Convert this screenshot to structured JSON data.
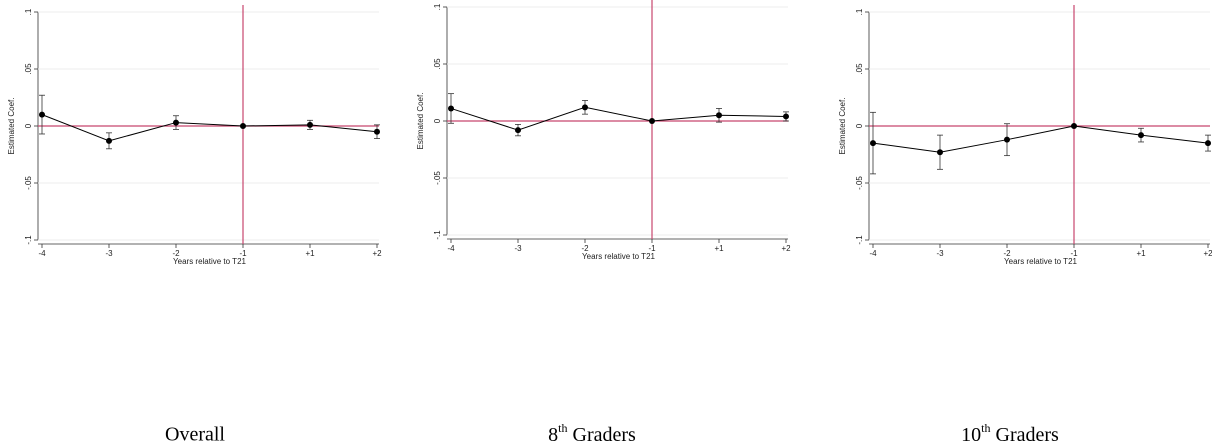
{
  "chart_data": [
    {
      "type": "line",
      "caption": "Overall",
      "ylabel": "Estimated Coef.",
      "xlabel": "Years relative to T21",
      "categories": [
        "-4",
        "-3",
        "-2",
        "-1",
        "+1",
        "+2"
      ],
      "values": [
        0.01,
        -0.013,
        0.003,
        0,
        0.001,
        -0.005
      ],
      "errors": [
        0.017,
        0.007,
        0.006,
        0,
        0.004,
        0.006
      ],
      "color": "#000000",
      "ref_color": "#c8466e",
      "ref_y": 0,
      "ref_x": "-1",
      "grid": true,
      "ylim": [
        -0.1,
        0.1
      ],
      "yticks": [
        {
          "value": -0.1,
          "label": "-.1"
        },
        {
          "value": -0.05,
          "label": "-.05"
        },
        0,
        {
          "value": 0.05,
          "label": ".05"
        },
        {
          "value": 0.1,
          "label": ".1"
        }
      ]
    },
    {
      "type": "line",
      "caption": [
        "8",
        "th",
        " Graders"
      ],
      "ylabel": "Estimated Coef.",
      "xlabel": "Years relative to T21",
      "categories": [
        "-4",
        "-3",
        "-2",
        "-1",
        "+1",
        "+2"
      ],
      "values": [
        0.011,
        -0.008,
        0.012,
        0,
        0.005,
        0.004
      ],
      "errors": [
        0.013,
        0.005,
        0.006,
        0,
        0.006,
        0.004
      ],
      "color": "#000000",
      "ref_color": "#c8466e",
      "ref_y": 0,
      "ref_x": "-1",
      "grid": true,
      "ylim": [
        -0.1,
        0.1
      ],
      "yticks": [
        {
          "value": -0.1,
          "label": "-.1"
        },
        {
          "value": -0.05,
          "label": "-.05"
        },
        0,
        {
          "value": 0.05,
          "label": ".05"
        },
        {
          "value": 0.1,
          "label": ".1"
        }
      ]
    },
    {
      "type": "line",
      "caption": [
        "10",
        "th",
        " Graders"
      ],
      "ylabel": "Estimated Coef.",
      "xlabel": "Years relative to T21",
      "categories": [
        "-4",
        "-3",
        "-2",
        "-1",
        "+1",
        "+2"
      ],
      "values": [
        -0.015,
        -0.023,
        -0.012,
        0,
        -0.008,
        -0.015
      ],
      "errors": [
        0.027,
        0.015,
        0.014,
        0,
        0.006,
        0.007
      ],
      "color": "#000000",
      "ref_color": "#c8466e",
      "ref_y": 0,
      "ref_x": "-1",
      "grid": true,
      "ylim": [
        -0.1,
        0.1
      ],
      "yticks": [
        {
          "value": -0.1,
          "label": "-.1"
        },
        {
          "value": -0.05,
          "label": "-.05"
        },
        0,
        {
          "value": 0.05,
          "label": ".05"
        },
        {
          "value": 0.1,
          "label": ".1"
        }
      ]
    }
  ]
}
